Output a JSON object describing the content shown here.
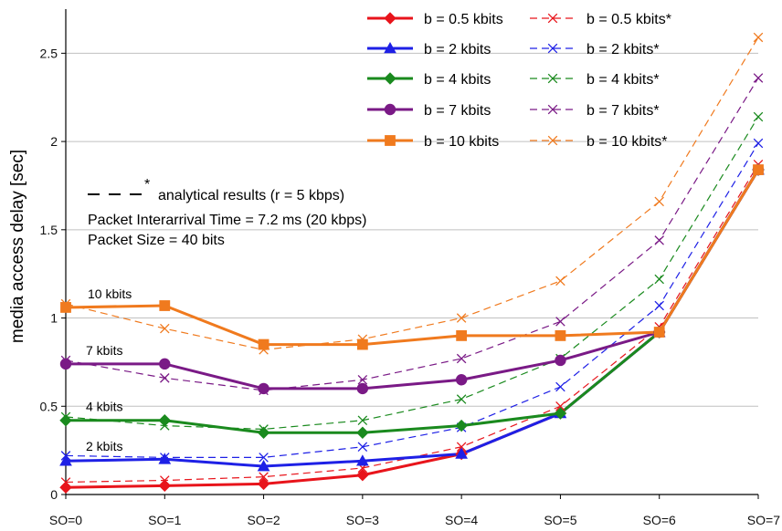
{
  "chart_data": {
    "type": "line",
    "title": "",
    "xlabel": "",
    "ylabel": "media access delay  [sec]",
    "categories": [
      "SO=0",
      "SO=1",
      "SO=2",
      "SO=3",
      "SO=4",
      "SO=5",
      "SO=6",
      "SO=7"
    ],
    "ylim": [
      0,
      2.75
    ],
    "yticks": [
      "0",
      "0.5",
      "1",
      "1.5",
      "2",
      "2.5"
    ],
    "grid": true,
    "legend_position": "top-right",
    "series": [
      {
        "name": "b = 0.5 kbits",
        "style": "solid",
        "marker": "diamond",
        "color": "#e8141b",
        "values": [
          0.04,
          0.05,
          0.06,
          0.11,
          0.23,
          0.46,
          0.92,
          1.84
        ]
      },
      {
        "name": "b = 2 kbits",
        "style": "solid",
        "marker": "triangle",
        "color": "#1e20e6",
        "values": [
          0.19,
          0.2,
          0.16,
          0.19,
          0.23,
          0.46,
          0.92,
          1.84
        ]
      },
      {
        "name": "b = 4 kbits",
        "style": "solid",
        "marker": "diamond",
        "color": "#1a8a1e",
        "values": [
          0.42,
          0.42,
          0.35,
          0.35,
          0.39,
          0.46,
          0.92,
          1.84
        ]
      },
      {
        "name": "b = 7 kbits",
        "style": "solid",
        "marker": "circle",
        "color": "#7a1a86",
        "values": [
          0.74,
          0.74,
          0.6,
          0.6,
          0.65,
          0.76,
          0.92,
          1.84
        ]
      },
      {
        "name": "b = 10 kbits",
        "style": "solid",
        "marker": "square",
        "color": "#f07a1e",
        "values": [
          1.06,
          1.07,
          0.85,
          0.85,
          0.9,
          0.9,
          0.92,
          1.84
        ]
      },
      {
        "name": "b = 0.5 kbits*",
        "style": "dashed",
        "marker": "x",
        "color": "#e8141b",
        "values": [
          0.07,
          0.08,
          0.1,
          0.15,
          0.27,
          0.5,
          0.95,
          1.87
        ]
      },
      {
        "name": "b = 2 kbits*",
        "style": "dashed",
        "marker": "x",
        "color": "#1e20e6",
        "values": [
          0.22,
          0.21,
          0.21,
          0.27,
          0.38,
          0.61,
          1.07,
          1.99
        ]
      },
      {
        "name": "b = 4 kbits*",
        "style": "dashed",
        "marker": "x",
        "color": "#1a8a1e",
        "values": [
          0.44,
          0.39,
          0.37,
          0.42,
          0.54,
          0.77,
          1.22,
          2.14
        ]
      },
      {
        "name": "b = 7 kbits*",
        "style": "dashed",
        "marker": "x",
        "color": "#7a1a86",
        "values": [
          0.76,
          0.66,
          0.59,
          0.65,
          0.77,
          0.98,
          1.44,
          2.36
        ]
      },
      {
        "name": "b = 10 kbits*",
        "style": "dashed",
        "marker": "x",
        "color": "#f07a1e",
        "values": [
          1.08,
          0.94,
          0.82,
          0.88,
          1.0,
          1.21,
          1.66,
          2.59
        ]
      }
    ],
    "annotations": {
      "analytical": "analytical results (r = 5 kbps)",
      "interarrival": "Packet Interarrival Time = 7.2 ms (20 kbps)",
      "packet_size": "Packet Size = 40 bits",
      "curve_labels": [
        {
          "text": "10 kbits",
          "series": 4
        },
        {
          "text": "7 kbits",
          "series": 3
        },
        {
          "text": "4 kbits",
          "series": 2
        },
        {
          "text": "2 kbits",
          "series": 1
        }
      ]
    },
    "colors": {
      "grid": "#c0c0c0",
      "axis": "#000000"
    }
  }
}
